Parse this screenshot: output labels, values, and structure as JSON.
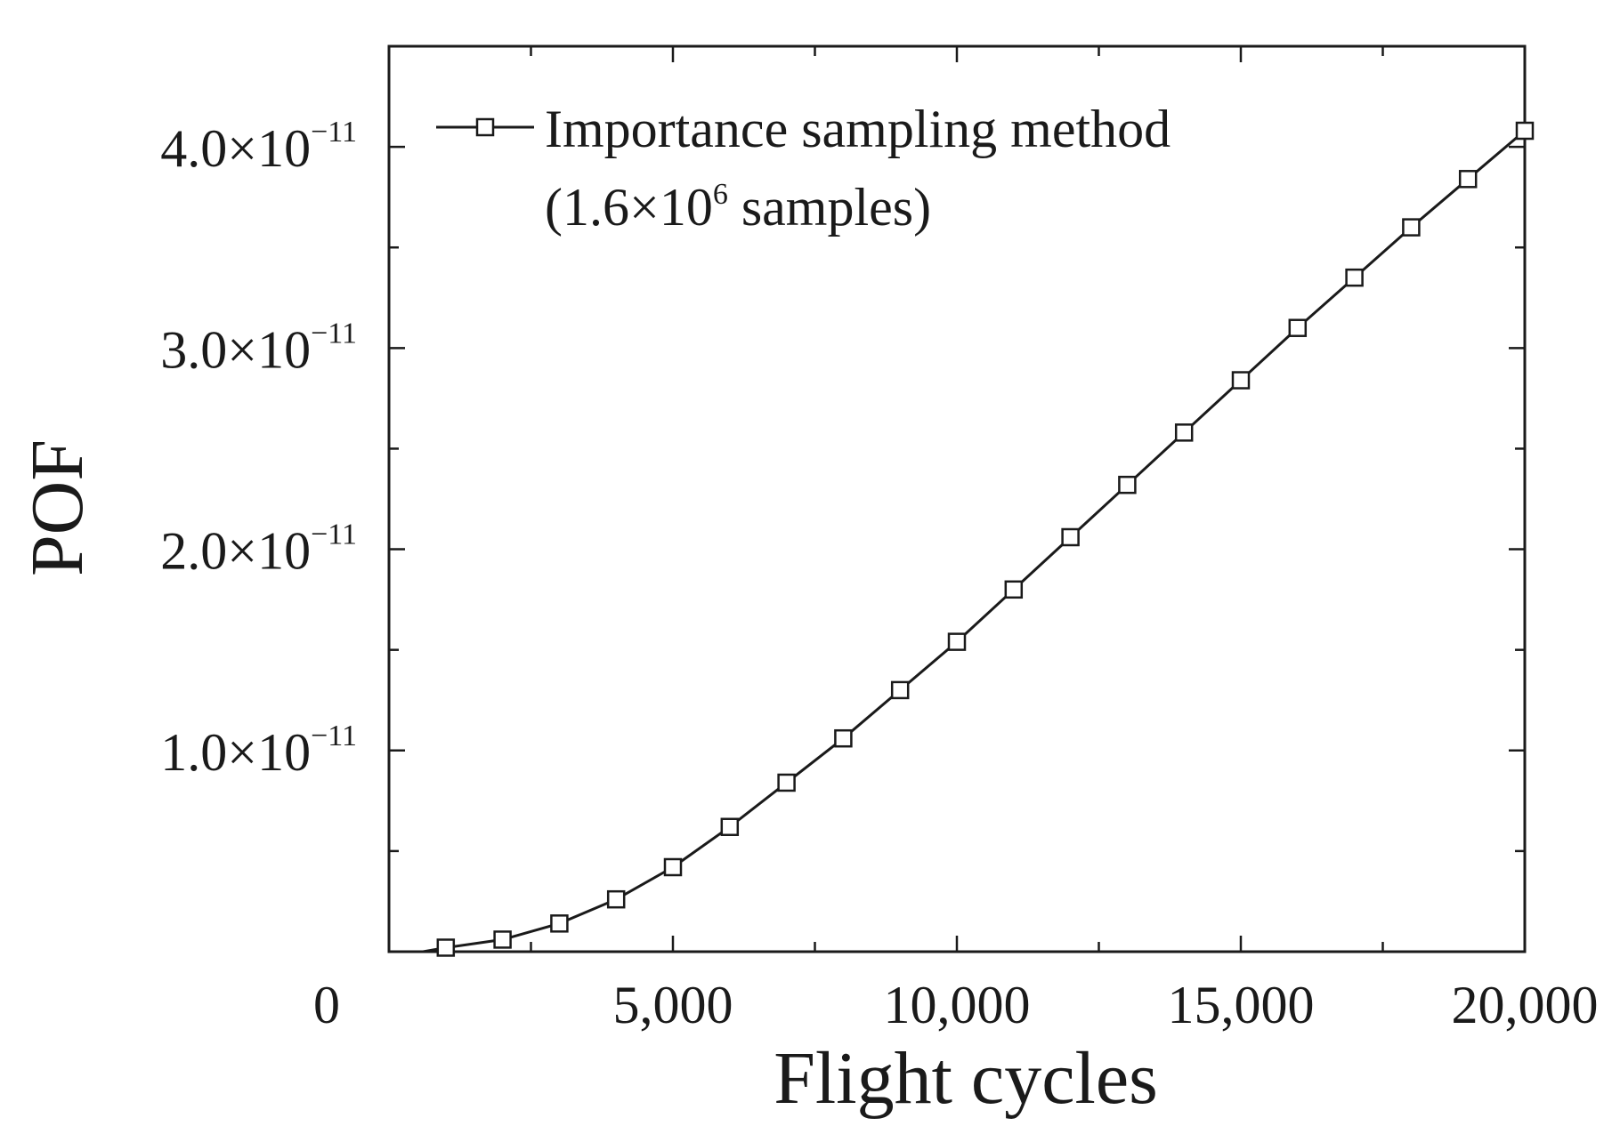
{
  "chart_data": {
    "type": "line",
    "title": "",
    "xlabel": "Flight cycles",
    "ylabel": "POF",
    "xlim": [
      0,
      20000
    ],
    "ylim": [
      0,
      4.5e-11
    ],
    "grid": false,
    "legend_position": "top-left",
    "x_ticks": [
      {
        "value": 0,
        "label": "0"
      },
      {
        "value": 5000,
        "label": "5,000"
      },
      {
        "value": 10000,
        "label": "10,000"
      },
      {
        "value": 15000,
        "label": "15,000"
      },
      {
        "value": 20000,
        "label": "20,000"
      }
    ],
    "y_ticks": [
      {
        "value": 1e-11,
        "mantissa": "1.0",
        "base": "×10",
        "exponent": "−11"
      },
      {
        "value": 2e-11,
        "mantissa": "2.0",
        "base": "×10",
        "exponent": "−11"
      },
      {
        "value": 3e-11,
        "mantissa": "3.0",
        "base": "×10",
        "exponent": "−11"
      },
      {
        "value": 4e-11,
        "mantissa": "4.0",
        "base": "×10",
        "exponent": "−11"
      }
    ],
    "series": [
      {
        "name": "Importance sampling method (1.6×10^6 samples)",
        "legend_line1": "Importance sampling method",
        "legend_line2_prefix": "(1.6×10",
        "legend_line2_sup": "6",
        "legend_line2_suffix": " samples)",
        "color": "#1a1a1a",
        "marker": "open-square",
        "x": [
          1000,
          2000,
          3000,
          4000,
          5000,
          6000,
          7000,
          8000,
          9000,
          10000,
          11000,
          12000,
          13000,
          14000,
          15000,
          16000,
          17000,
          18000,
          19000,
          20000
        ],
        "y": [
          2e-13,
          6e-13,
          1.4e-12,
          2.6e-12,
          4.2e-12,
          6.2e-12,
          8.4e-12,
          1.06e-11,
          1.3e-11,
          1.54e-11,
          1.8e-11,
          2.06e-11,
          2.32e-11,
          2.58e-11,
          2.84e-11,
          3.1e-11,
          3.35e-11,
          3.6e-11,
          3.84e-11,
          4.08e-11
        ]
      }
    ]
  }
}
